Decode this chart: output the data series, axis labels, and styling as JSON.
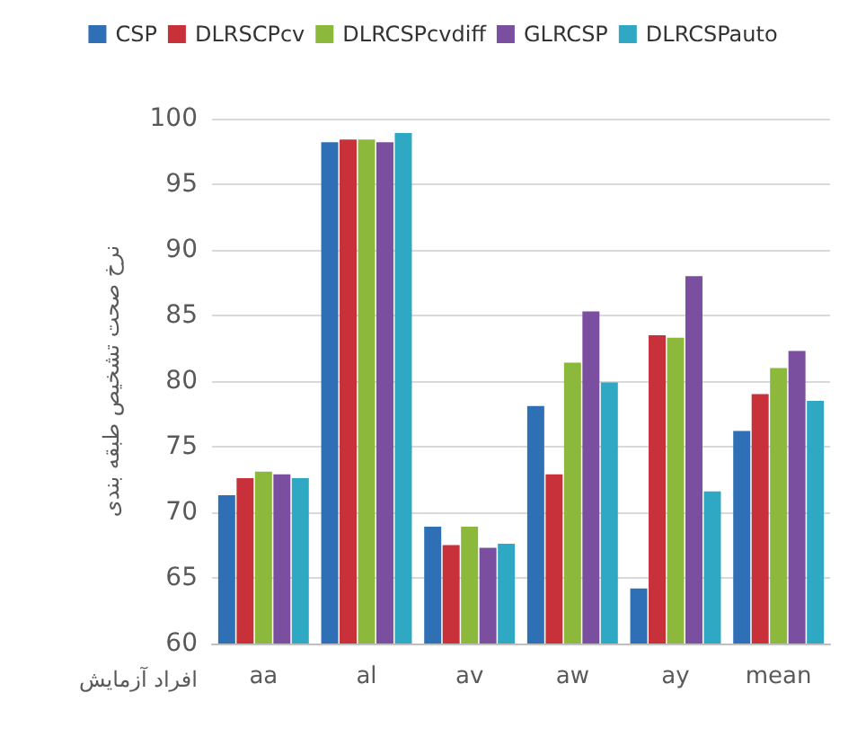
{
  "chart_data": {
    "type": "bar",
    "xlabel": "افراد آزمایش",
    "ylabel": "نرخ صحت تشخیص طبقه بندی",
    "categories": [
      "aa",
      "al",
      "av",
      "aw",
      "ay",
      "mean"
    ],
    "series": [
      {
        "name": "CSP",
        "color": "#2e6fb5",
        "values": [
          71.3,
          98.2,
          68.9,
          78.1,
          64.2,
          76.2
        ]
      },
      {
        "name": "DLRSCPcv",
        "color": "#c8303a",
        "values": [
          72.6,
          98.4,
          67.5,
          72.9,
          83.5,
          79.0
        ]
      },
      {
        "name": "DLRCSPcvdiff",
        "color": "#8cb83c",
        "values": [
          73.1,
          98.4,
          68.9,
          81.4,
          83.3,
          81.0
        ]
      },
      {
        "name": "GLRCSP",
        "color": "#7b4fa0",
        "values": [
          72.9,
          98.2,
          67.3,
          85.3,
          88.0,
          82.3
        ]
      },
      {
        "name": "DLRCSPauto",
        "color": "#2fa8c4",
        "values": [
          72.6,
          98.9,
          67.6,
          79.9,
          71.6,
          78.5
        ]
      }
    ],
    "ylim": [
      60,
      100
    ],
    "yticks": [
      60,
      65,
      70,
      75,
      80,
      85,
      90,
      95,
      100
    ],
    "grid": "y",
    "legend": "top"
  }
}
